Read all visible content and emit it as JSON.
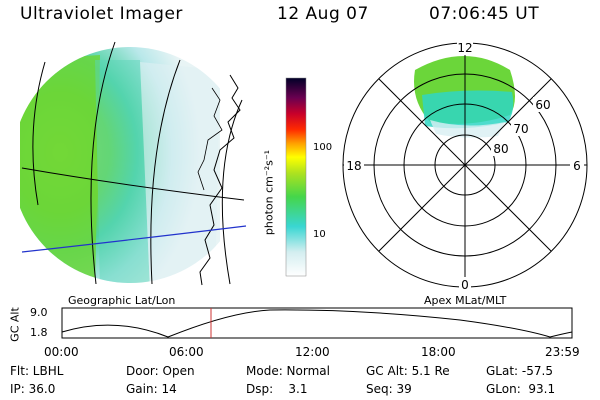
{
  "header": {
    "title": "Ultraviolet Imager",
    "date": "12 Aug 07",
    "time": "07:06:45 UT"
  },
  "panels": {
    "geo_label": "Geographic Lat/Lon",
    "polar_label": "Apex MLat/MLT"
  },
  "colorbar": {
    "unit_label": "photon cm⁻²s⁻¹",
    "ticks": [
      "100",
      "10"
    ]
  },
  "polar": {
    "mlt_labels": {
      "top": "12",
      "left": "18",
      "right": "6",
      "bottom": "0"
    },
    "lat_labels": [
      "60",
      "70",
      "80"
    ]
  },
  "altitude_plot": {
    "ylabel": "GC Alt",
    "yticks": [
      "9.0",
      "1.8"
    ],
    "xticks": [
      "00:00",
      "06:00",
      "12:00",
      "18:00",
      "23:59"
    ]
  },
  "info": {
    "filter": "Flt: LBHL",
    "ip": "IP: 36.0",
    "door": "Door: Open",
    "gain": "Gain: 14",
    "mode": "Mode: Normal",
    "dsp": "Dsp:    3.1",
    "gc_alt": "GC Alt: 5.1 Re",
    "seq": "Seq: 39",
    "glat": "GLat: -57.5",
    "glon": "GLon:  93.1"
  },
  "colors": {
    "geo_line": "#000000",
    "equator_line": "#2233cc",
    "marker_line": "#cc3333"
  }
}
